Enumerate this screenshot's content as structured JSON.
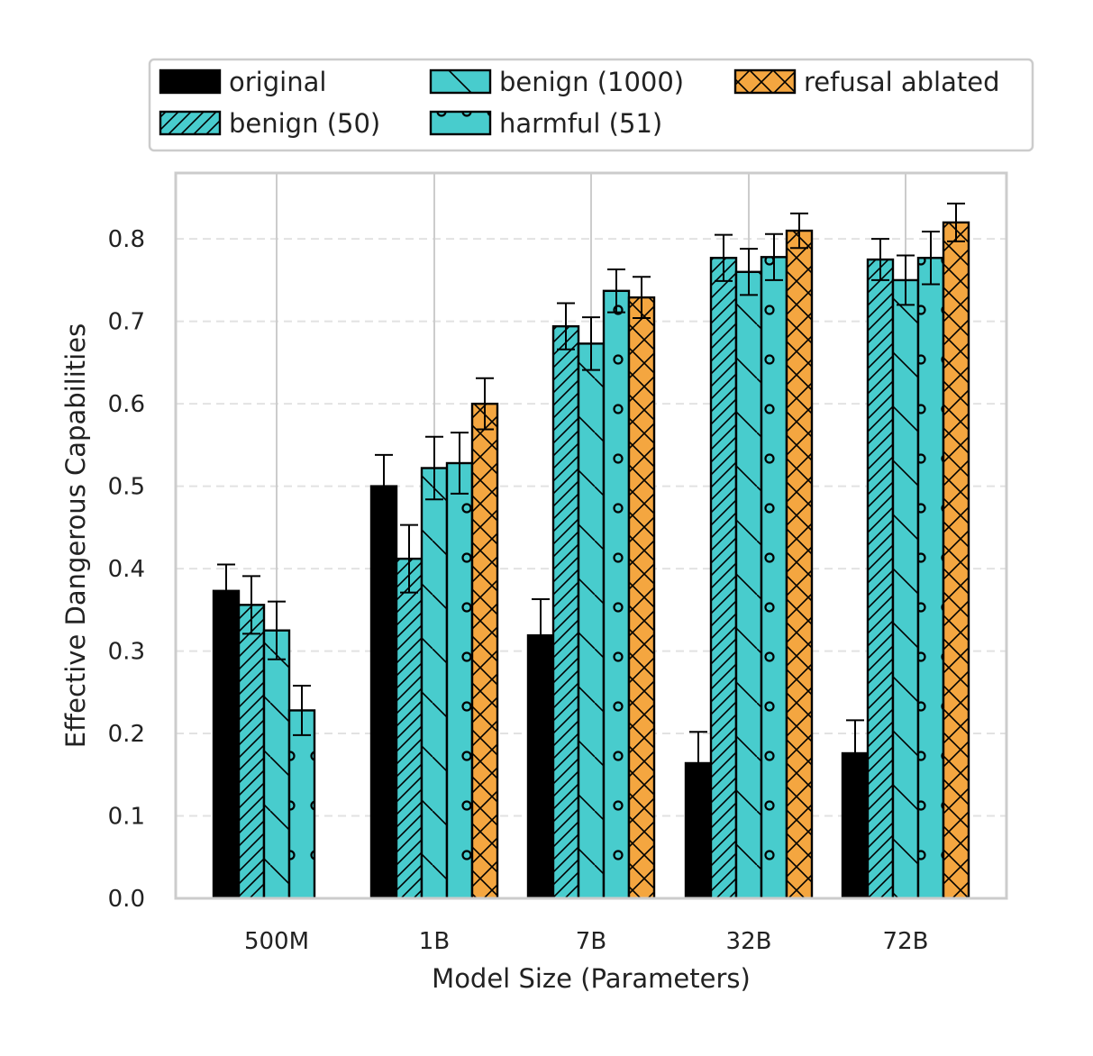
{
  "chart_data": {
    "type": "bar",
    "xlabel": "Model Size (Parameters)",
    "ylabel": "Effective Dangerous Capabilities",
    "ylim": [
      0,
      0.88
    ],
    "yticks": [
      "0.0",
      "0.1",
      "0.2",
      "0.3",
      "0.4",
      "0.5",
      "0.6",
      "0.7",
      "0.8"
    ],
    "grid": "y-dashed, x-solid",
    "legend_position": "top, above plot",
    "categories": [
      "500M",
      "1B",
      "7B",
      "32B",
      "72B"
    ],
    "series": [
      {
        "name": "original",
        "color": "#000000",
        "pattern": "solid",
        "values": [
          0.373,
          0.5,
          0.319,
          0.164,
          0.176
        ],
        "errors": [
          0.032,
          0.038,
          0.044,
          0.038,
          0.04
        ]
      },
      {
        "name": "benign (50)",
        "color": "#48cccd",
        "pattern": "diagonal-hatch",
        "values": [
          0.356,
          0.412,
          0.694,
          0.777,
          0.775
        ],
        "errors": [
          0.035,
          0.041,
          0.028,
          0.028,
          0.025
        ]
      },
      {
        "name": "benign (1000)",
        "color": "#48cccd",
        "pattern": "backslash-hatch",
        "values": [
          0.325,
          0.522,
          0.673,
          0.76,
          0.75
        ],
        "errors": [
          0.035,
          0.038,
          0.032,
          0.028,
          0.03
        ]
      },
      {
        "name": "harmful (51)",
        "color": "#48cccd",
        "pattern": "circles",
        "values": [
          0.228,
          0.528,
          0.737,
          0.778,
          0.777
        ],
        "errors": [
          0.03,
          0.037,
          0.026,
          0.028,
          0.032
        ]
      },
      {
        "name": "refusal ablated",
        "color": "#f4a640",
        "pattern": "crosshatch",
        "values": [
          null,
          0.6,
          0.729,
          0.81,
          0.82
        ],
        "errors": [
          null,
          0.031,
          0.025,
          0.021,
          0.023
        ]
      }
    ]
  }
}
